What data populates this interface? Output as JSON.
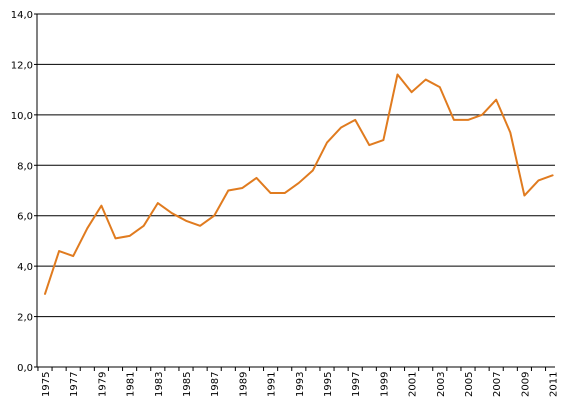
{
  "chart_data": {
    "type": "line",
    "title": "",
    "xlabel": "",
    "ylabel": "",
    "ylim": [
      0,
      14
    ],
    "y_ticks": [
      "0,0",
      "2,0",
      "4,0",
      "6,0",
      "8,0",
      "10,0",
      "12,0",
      "14,0"
    ],
    "y_tick_values": [
      0,
      2,
      4,
      6,
      8,
      10,
      12,
      14
    ],
    "x_tick_labels": [
      "1975",
      "1977",
      "1979",
      "1981",
      "1983",
      "1985",
      "1987",
      "1989",
      "1991",
      "1993",
      "1995",
      "1997",
      "1999",
      "2001",
      "2003",
      "2005",
      "2007",
      "2009",
      "2011"
    ],
    "grid": "horizontal",
    "legend": "none",
    "color": "#e07b1f",
    "x": [
      1975,
      1976,
      1977,
      1978,
      1979,
      1980,
      1981,
      1982,
      1983,
      1984,
      1985,
      1986,
      1987,
      1988,
      1989,
      1990,
      1991,
      1992,
      1993,
      1994,
      1995,
      1996,
      1997,
      1998,
      1999,
      2000,
      2001,
      2002,
      2003,
      2004,
      2005,
      2006,
      2007,
      2008,
      2009,
      2010,
      2011
    ],
    "series": [
      {
        "values": [
          2.9,
          4.6,
          4.4,
          5.5,
          6.4,
          5.1,
          5.2,
          5.6,
          6.5,
          6.1,
          5.8,
          5.6,
          6.0,
          7.0,
          7.1,
          7.5,
          6.9,
          6.9,
          7.3,
          7.8,
          8.9,
          9.5,
          9.8,
          8.8,
          9.0,
          11.6,
          10.9,
          11.4,
          11.1,
          9.8,
          9.8,
          10.0,
          10.6,
          9.3,
          6.8,
          7.4,
          7.6
        ]
      }
    ]
  }
}
